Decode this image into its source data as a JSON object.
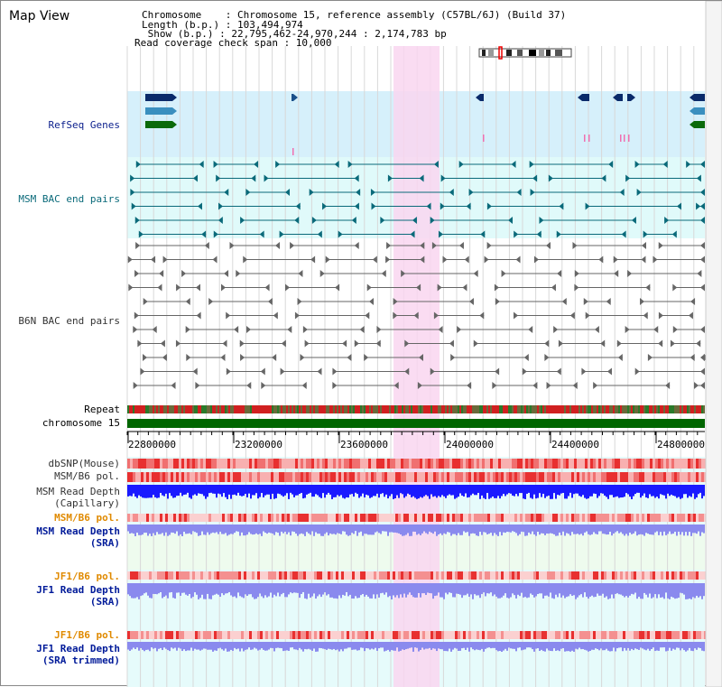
{
  "view_title": "Map View",
  "header": {
    "line1": "Chromosome    : Chromosome 15, reference assembly (C57BL/6J) (Build 37)",
    "line2": "Length (b.p.) : 103,494,974",
    "line3": " Show (b.p.) : 22,795,462-24,970,244 : 2,174,783 bp",
    "line4": "Read coverage check span : 10,000"
  },
  "tracks": {
    "refseq": "RefSeq Genes",
    "msm_bac": "MSM BAC end pairs",
    "b6n_bac": "B6N BAC end pairs",
    "repeat": "Repeat",
    "chromosome": "chromosome 15",
    "dbsnp": "dbSNP(Mouse)",
    "msm_b6_pol_1": "MSM/B6 pol.",
    "msm_depth_cap_1": "MSM Read Depth",
    "msm_depth_cap_2": "(Capillary)",
    "msm_b6_pol_2": "MSM/B6 pol.",
    "msm_depth_sra_1": "MSM Read Depth",
    "msm_depth_sra_2": "(SRA)",
    "jf1_b6_pol_1": "JF1/B6 pol.",
    "jf1_depth_sra_1": "JF1 Read Depth",
    "jf1_depth_sra_2": "(SRA)",
    "jf1_b6_pol_2": "JF1/B6 pol.",
    "jf1_depth_trim_1": "JF1 Read Depth",
    "jf1_depth_trim_2": "(SRA trimmed)"
  },
  "scale": {
    "ticks": [
      "22800000",
      "23200000",
      "23600000",
      "24000000",
      "24400000",
      "24800000"
    ]
  },
  "colors": {
    "refseq_bg": "#d6f0fb",
    "msm_bg": "#e0fafa",
    "highlight": "#f9d6f0",
    "chromosome": "#006600",
    "depth_blue": "#1a1aff",
    "depth_violet": "#8a8aee"
  }
}
